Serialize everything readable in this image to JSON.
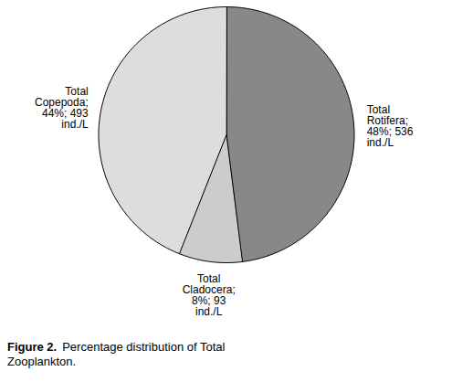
{
  "chart_data": {
    "type": "pie",
    "categories": [
      "Total\nRotifera;\n48%; 536\nind./L",
      "Total\nCladocera;\n8%; 93\nind./L",
      "Total\nCopepoda;\n44%; 493\nind./L"
    ],
    "values": [
      48,
      8,
      44
    ],
    "colors": [
      "#888888",
      "#cccccc",
      "#dddddd"
    ],
    "caption_label": "Figure 2.",
    "caption": "Percentage distribution of Total\nZooplankton."
  }
}
